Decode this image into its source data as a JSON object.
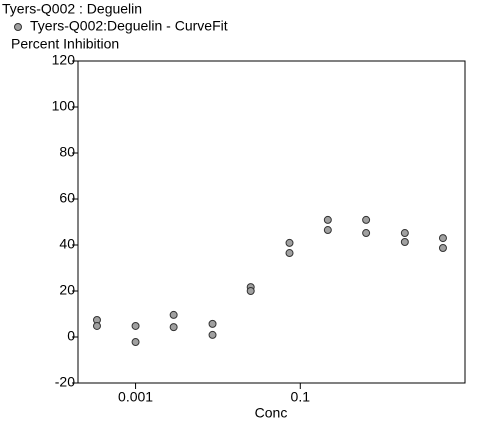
{
  "chart_data": {
    "type": "scatter",
    "title": "Tyers-Q002 : Deguelin",
    "y_label": "Percent Inhibition",
    "x_label": "Conc",
    "x": [
      0.00034,
      0.00034,
      0.001,
      0.001,
      0.0029,
      0.0029,
      0.0086,
      0.0086,
      0.025,
      0.025,
      0.074,
      0.074,
      0.216,
      0.216,
      0.63,
      0.63,
      1.86,
      1.86,
      5.4,
      5.4
    ],
    "series": [
      {
        "name": "Tyers-Q002:Deguelin - CurveFit",
        "color": "#a0a0a0",
        "values": [
          7.4,
          4.8,
          4.8,
          -2.2,
          9.6,
          4.3,
          5.7,
          0.9,
          21.7,
          20,
          40.9,
          36.5,
          50.9,
          46.5,
          50.9,
          45.2,
          45.2,
          41.3,
          43,
          38.7
        ]
      }
    ],
    "xlim": [
      0.0002,
      10
    ],
    "xscale": "log",
    "xticks": [
      0.001,
      0.1
    ],
    "ylim": [
      -20,
      120
    ],
    "yticks": [
      -20,
      0,
      20,
      40,
      60,
      80,
      100,
      120
    ]
  }
}
